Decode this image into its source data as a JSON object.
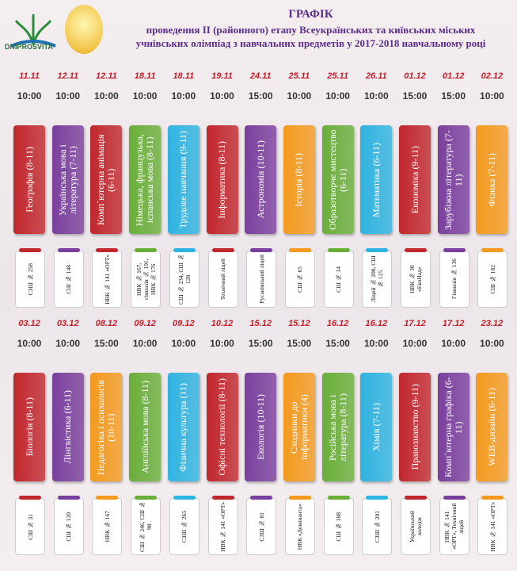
{
  "header": {
    "logo": "DNIPROSVITA",
    "title": "ГРАФІК",
    "line1": "проведення ІІ (районного)  етапу Всеукраїнських та київських міських",
    "line2": "учнівських олімпіад з навчальних предметів у 2017-2018  навчальному році"
  },
  "rows": [
    [
      {
        "date": "11.11",
        "time": "10:00",
        "subject": "Географія (8-11)",
        "venue": "СЗШ № 258",
        "color": "#c0272d"
      },
      {
        "date": "12.11",
        "time": "10:00",
        "subject": "Українська мова і література (7-11)",
        "venue": "СШ № 148",
        "color": "#7a3f9d"
      },
      {
        "date": "12.11",
        "time": "10:00",
        "subject": "Комп`ютерна анімація (6-11)",
        "venue": "НВК № 141 «ОРТ»",
        "color": "#c0272d"
      },
      {
        "date": "18.11",
        "time": "10:00",
        "subject": "Німецька, французька, іспанська мова (8-11)",
        "venue": "НВК № 167, гімназія № 191, НВК № 176",
        "color": "#6aae3a"
      },
      {
        "date": "18.11",
        "time": "10:00",
        "subject": "Трудове навчання (9-11)",
        "venue": "СШ № 234, СШ № 128",
        "color": "#2fb3e0"
      },
      {
        "date": "19.11",
        "time": "10:00",
        "subject": "Інформатика (8-11)",
        "venue": "Технічний ліцей",
        "color": "#c0272d"
      },
      {
        "date": "24.11",
        "time": "15:00",
        "subject": "Астрономія (10-11)",
        "venue": "Русанівський ліцей",
        "color": "#7a3f9d"
      },
      {
        "date": "25.11",
        "time": "10:00",
        "subject": "Історія (8-11)",
        "venue": "СШ № 65",
        "color": "#f39a1f"
      },
      {
        "date": "25.11",
        "time": "10:00",
        "subject": "Образотворче мистецтво (6-11)",
        "venue": "СШ № 14",
        "color": "#6aae3a"
      },
      {
        "date": "26.11",
        "time": "10:00",
        "subject": "Математика (6-11)",
        "venue": "Ліцей № 208, СШ № 125",
        "color": "#2fb3e0"
      },
      {
        "date": "01.12",
        "time": "15:00",
        "subject": "Економіка (9-11)",
        "venue": "НВК № 30 «ЕкоНад»",
        "color": "#c0272d"
      },
      {
        "date": "01.12",
        "time": "15:00",
        "subject": "Зарубіжна література (7-11)",
        "venue": "Гімназія № 136",
        "color": "#7a3f9d"
      },
      {
        "date": "02.12",
        "time": "10:00",
        "subject": "Фізика (7-11)",
        "venue": "СШ № 182",
        "color": "#f39a1f"
      }
    ],
    [
      {
        "date": "03.12",
        "time": "10:00",
        "subject": "Біологія (8-11)",
        "venue": "СШ № 31",
        "color": "#c0272d"
      },
      {
        "date": "03.12",
        "time": "10:00",
        "subject": "Лінгвістика (6-11)",
        "venue": "СШ № 120",
        "color": "#7a3f9d"
      },
      {
        "date": "08.12",
        "time": "15:00",
        "subject": "Педагогіка і психологія (10-11)",
        "venue": "НВК № 167",
        "color": "#f39a1f"
      },
      {
        "date": "09.12",
        "time": "10:00",
        "subject": "Англійська мова (8-11)",
        "venue": "СШ № 246, СШ № 98",
        "color": "#6aae3a"
      },
      {
        "date": "09.12",
        "time": "10:00",
        "subject": "Фізична культура (11)",
        "venue": "СЗШ № 265",
        "color": "#2fb3e0"
      },
      {
        "date": "10.12",
        "time": "10:00",
        "subject": "Офісні технології (8-11)",
        "venue": "НВК № 141 «ОРТ»",
        "color": "#c0272d"
      },
      {
        "date": "15.12",
        "time": "15:00",
        "subject": "Екологія (10-11)",
        "venue": "СЗШ № 81",
        "color": "#7a3f9d"
      },
      {
        "date": "15.12",
        "time": "15:00",
        "subject": "Сходинки до інформатики (4)",
        "venue": "НВК «Домінанта»",
        "color": "#f39a1f"
      },
      {
        "date": "16.12",
        "time": "15:00",
        "subject": "Російська мова і література (8-11)",
        "venue": "СШ № 188",
        "color": "#6aae3a"
      },
      {
        "date": "16.12",
        "time": "10:00",
        "subject": "Хімія (7-11)",
        "venue": "СЗШ № 201",
        "color": "#2fb3e0"
      },
      {
        "date": "17.12",
        "time": "10:00",
        "subject": "Правознавство (9-11)",
        "venue": "Український коледж",
        "color": "#c0272d"
      },
      {
        "date": "17.12",
        "time": "10:00",
        "subject": "Комп`ютерна графіка (6-11)",
        "venue": "НВК № 141 «ОРТ», Технічний ліцей",
        "color": "#7a3f9d"
      },
      {
        "date": "23.12",
        "time": "10:00",
        "subject": "WEB-дизайн (6-11)",
        "venue": "НВК № 141 «ОРТ»",
        "color": "#f39a1f"
      }
    ]
  ]
}
